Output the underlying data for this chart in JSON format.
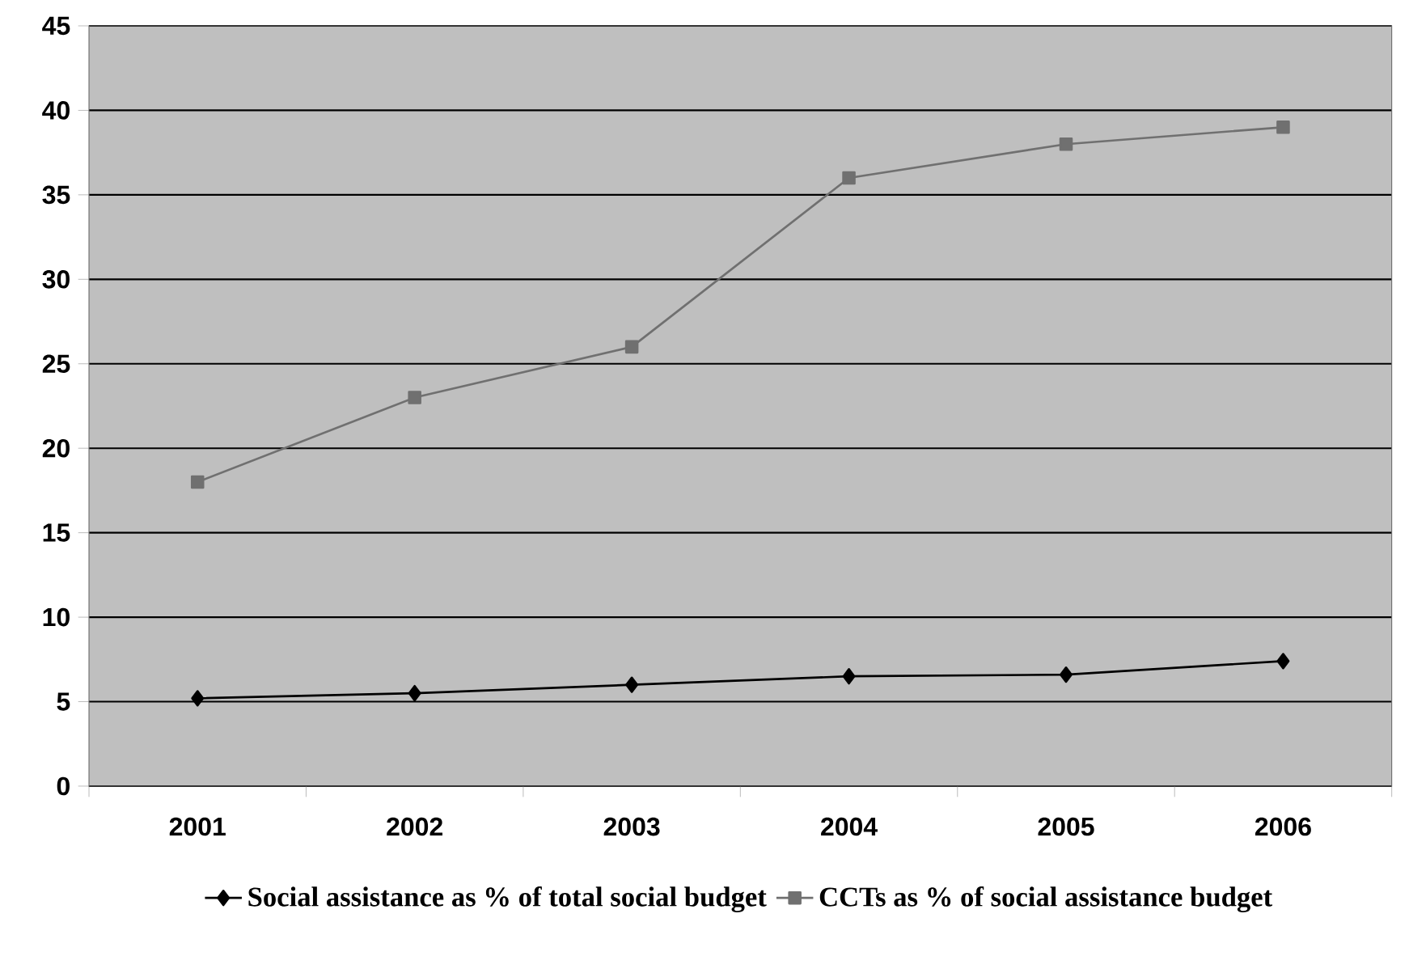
{
  "chart_data": {
    "type": "line",
    "categories": [
      "2001",
      "2002",
      "2003",
      "2004",
      "2005",
      "2006"
    ],
    "series": [
      {
        "name": "Social assistance as % of total social budget",
        "color": "#000000",
        "marker": "diamond",
        "values": [
          5.2,
          5.5,
          6.0,
          6.5,
          6.6,
          7.4
        ]
      },
      {
        "name": "CCTs as % of social assistance budget",
        "color": "#707070",
        "marker": "square",
        "values": [
          18,
          23,
          26,
          36,
          38,
          39
        ]
      }
    ],
    "ylim": [
      0,
      45
    ],
    "yticks": [
      0,
      5,
      10,
      15,
      20,
      25,
      30,
      35,
      40,
      45
    ],
    "grid": "y",
    "legend": "bottom"
  }
}
